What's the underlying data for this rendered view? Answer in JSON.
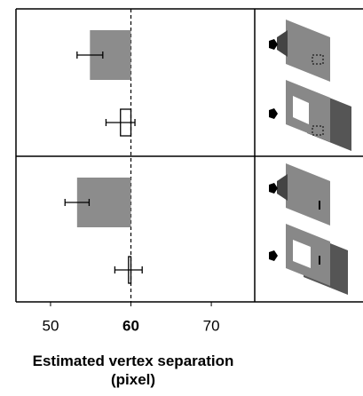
{
  "chart_data": {
    "type": "bar",
    "orientation": "horizontal",
    "xlabel": "Estimated vertex separation (pixel)",
    "xlim": [
      45.7,
      75.4
    ],
    "xticks": [
      50,
      60,
      70
    ],
    "reference_line": 60,
    "colors": [
      "#8c8c8c",
      "none"
    ],
    "panels": [
      {
        "values": [
          54.9,
          58.7
        ],
        "errors": [
          1.6,
          1.8
        ]
      },
      {
        "values": [
          53.3,
          59.7
        ],
        "errors": [
          1.5,
          1.7
        ]
      }
    ]
  }
}
